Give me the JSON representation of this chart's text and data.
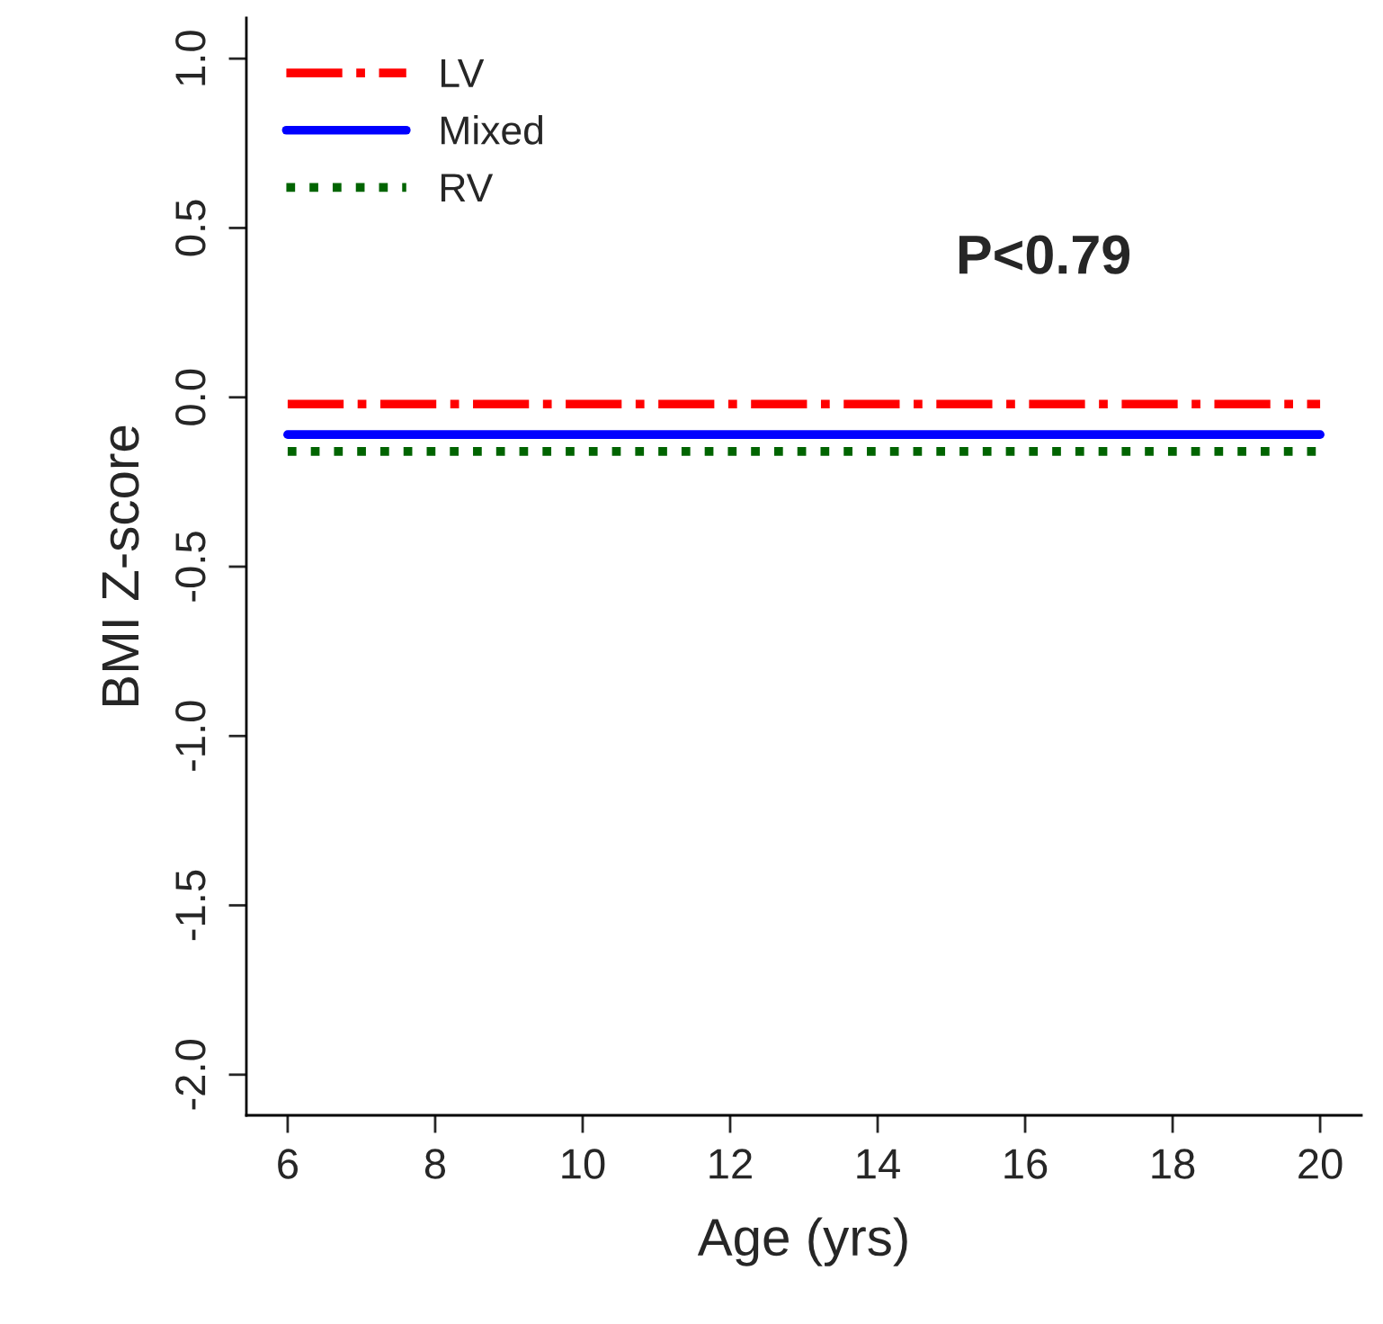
{
  "chart_data": {
    "type": "line",
    "xlabel": "Age (yrs)",
    "ylabel": "BMI Z-score",
    "x": [
      6,
      20
    ],
    "series": [
      {
        "name": "LV",
        "color": "#ff0000",
        "line_style": "dashdot",
        "values": [
          -0.02,
          -0.02
        ]
      },
      {
        "name": "Mixed",
        "color": "#0000ff",
        "line_style": "solid",
        "values": [
          -0.11,
          -0.11
        ]
      },
      {
        "name": "RV",
        "color": "#006400",
        "line_style": "dotted",
        "values": [
          -0.16,
          -0.16
        ]
      }
    ],
    "xlim": [
      5.44,
      20.56
    ],
    "ylim": [
      -2.12,
      1.12
    ],
    "xticks": [
      6,
      8,
      10,
      12,
      14,
      16,
      18,
      20
    ],
    "yticks": [
      {
        "value": -2,
        "label": "-2.0"
      },
      {
        "value": -1.5,
        "label": "-1.5"
      },
      {
        "value": -1,
        "label": "-1.0"
      },
      {
        "value": -0.5,
        "label": "-0.5"
      },
      {
        "value": 0,
        "label": "0.0"
      },
      {
        "value": 0.5,
        "label": "0.5"
      },
      {
        "value": 1,
        "label": "1.0"
      }
    ],
    "annotations": [
      "P<0.79"
    ],
    "legend": "top left",
    "grid": false,
    "marker": "none"
  }
}
